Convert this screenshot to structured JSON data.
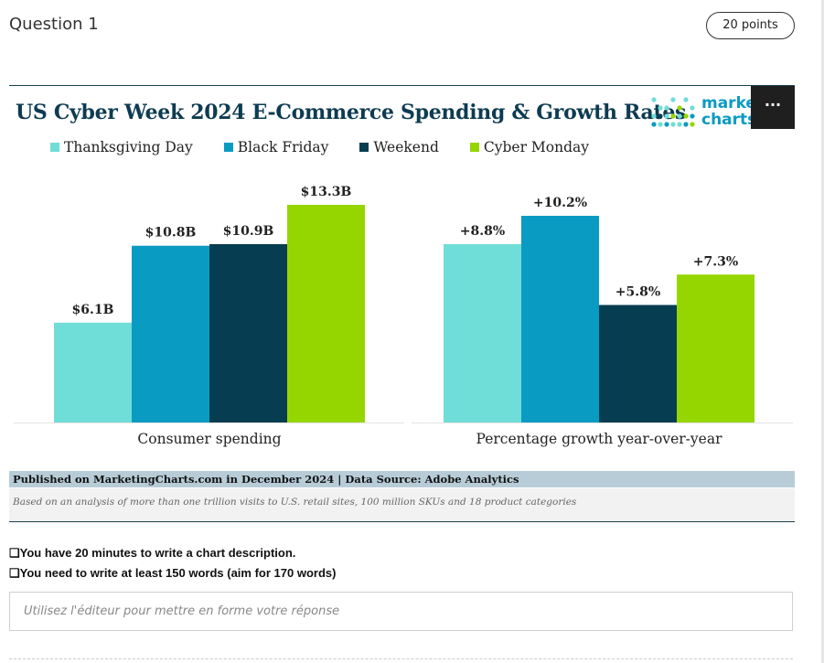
{
  "question": {
    "title": "Question 1",
    "points": "20 points"
  },
  "chart_header": {
    "title": "US Cyber Week 2024 E-Commerce Spending & Growth Rates",
    "logo_line1": "marke",
    "logo_line2": "charts",
    "menu_label": "···"
  },
  "colors": {
    "thanksgiving": "#6fddd8",
    "black_friday": "#0a9bc2",
    "weekend": "#073d50",
    "cyber_monday": "#95d600"
  },
  "chart_data": [
    {
      "type": "bar",
      "xlabel": "Consumer spending",
      "categories": [
        "Thanksgiving Day",
        "Black Friday",
        "Weekend",
        "Cyber Monday"
      ],
      "values": [
        6.1,
        10.8,
        10.9,
        13.3
      ],
      "labels": [
        "$6.1B",
        "$10.8B",
        "$10.9B",
        "$13.3B"
      ],
      "unit": "B USD",
      "legend": "top",
      "grid": false
    },
    {
      "type": "bar",
      "xlabel": "Percentage growth year-over-year",
      "categories": [
        "Thanksgiving Day",
        "Black Friday",
        "Weekend",
        "Cyber Monday"
      ],
      "values": [
        8.8,
        10.2,
        5.8,
        7.3
      ],
      "labels": [
        "+8.8%",
        "+10.2%",
        "+5.8%",
        "+7.3%"
      ],
      "unit": "%",
      "legend": "top",
      "grid": false
    }
  ],
  "source": "Published on MarketingCharts.com in December 2024 | Data Source: Adobe Analytics",
  "note": "Based on an analysis of more than one trillion visits to U.S. retail sites, 100 million SKUs and 18 product categories",
  "instructions": [
    "❑You have 20 minutes to write a chart description.",
    "❑You need to write at least 150 words (aim for 170 words)"
  ],
  "answer": {
    "placeholder": "Utilisez l'éditeur pour mettre en forme votre réponse"
  }
}
